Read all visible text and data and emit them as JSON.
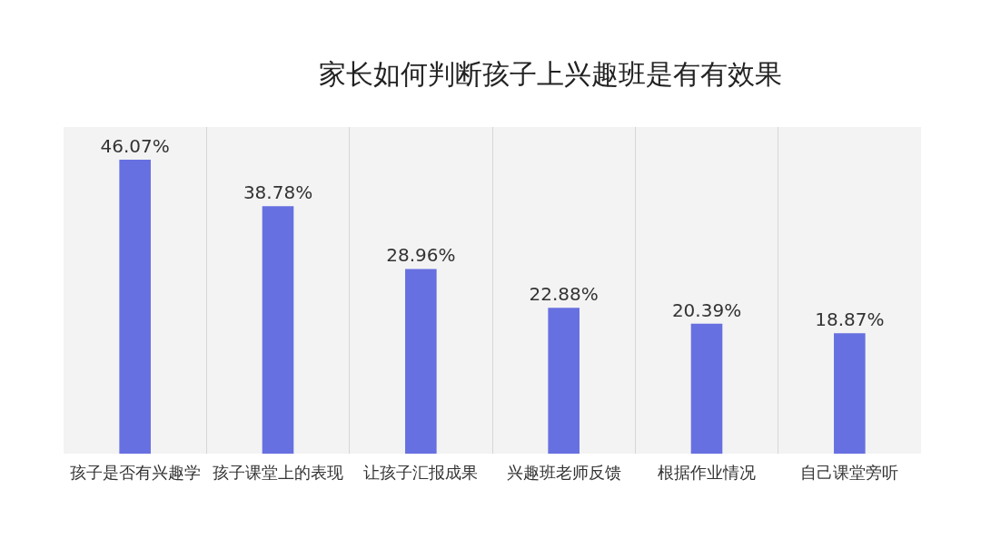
{
  "chart_data": {
    "type": "bar",
    "title": "家长如何判断孩子上兴趣班是有有效果",
    "categories": [
      "孩子是否有兴趣学",
      "孩子课堂上的表现",
      "让孩子汇报成果",
      "兴趣班老师反馈",
      "根据作业情况",
      "自己课堂旁听"
    ],
    "values": [
      46.07,
      38.78,
      28.96,
      22.88,
      20.39,
      18.87
    ],
    "value_labels": [
      "46.07%",
      "38.78%",
      "28.96%",
      "22.88%",
      "20.39%",
      "18.87%"
    ],
    "color": "#6770e0",
    "ylim": [
      0,
      51.2
    ],
    "grid": "x",
    "tick_labels": "x"
  }
}
